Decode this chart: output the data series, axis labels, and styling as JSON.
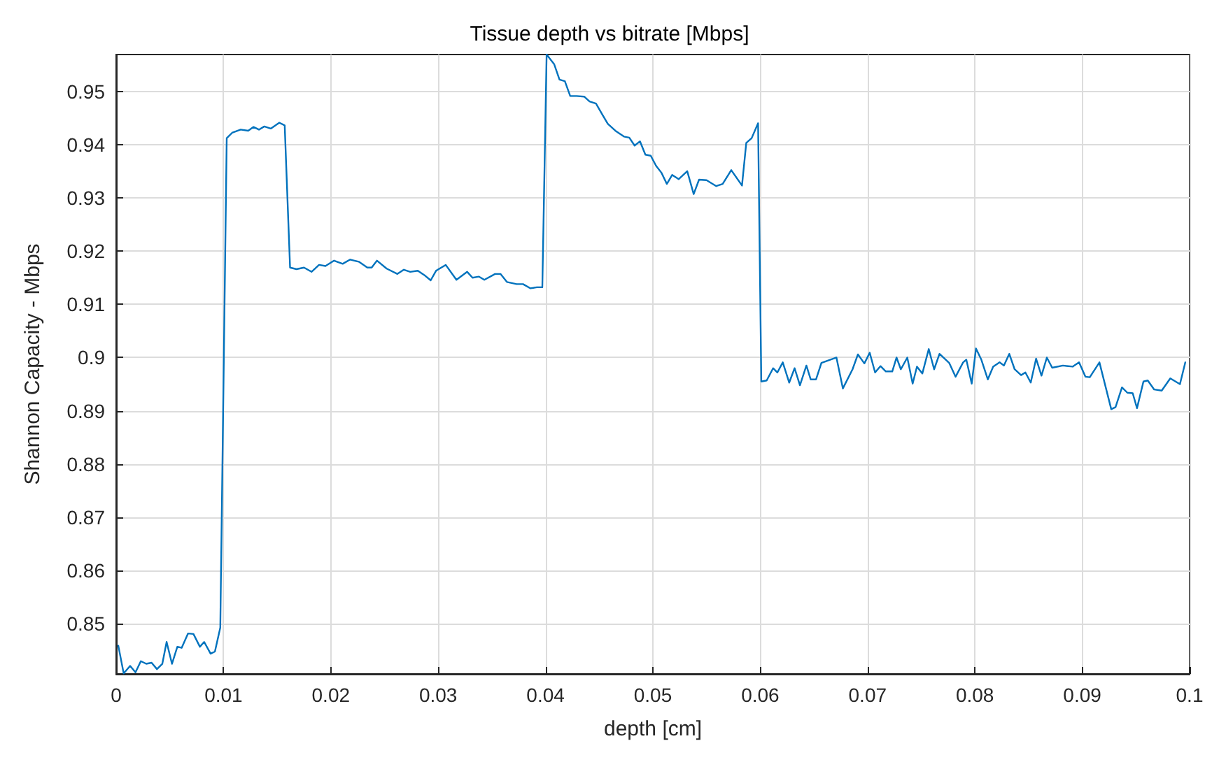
{
  "chart_data": {
    "type": "line",
    "title": "Tissue depth vs bitrate [Mbps]",
    "xlabel": "depth [cm]",
    "ylabel": "Shannon Capacity - Mbps",
    "xlim": [
      0,
      0.1
    ],
    "ylim": [
      0.8406,
      0.9569
    ],
    "xticks": [
      0,
      0.01,
      0.02,
      0.03,
      0.04,
      0.05,
      0.06,
      0.07,
      0.08,
      0.09,
      0.1
    ],
    "yticks": [
      0.85,
      0.86,
      0.87,
      0.88,
      0.89,
      0.9,
      0.91,
      0.92,
      0.93,
      0.94,
      0.95
    ],
    "grid": true,
    "marker": "none",
    "line_style": "solid",
    "x": [
      0.0002,
      0.0007,
      0.0013,
      0.0018,
      0.0023,
      0.0028,
      0.0033,
      0.0038,
      0.0043,
      0.0047,
      0.0052,
      0.0057,
      0.0061,
      0.0067,
      0.0072,
      0.0078,
      0.0082,
      0.0088,
      0.0092,
      0.0097,
      0.0103,
      0.0108,
      0.0116,
      0.0123,
      0.0128,
      0.0133,
      0.0138,
      0.0144,
      0.0152,
      0.0157,
      0.0162,
      0.0168,
      0.0175,
      0.0182,
      0.0189,
      0.0195,
      0.0203,
      0.0211,
      0.0218,
      0.0226,
      0.0234,
      0.0238,
      0.0243,
      0.0252,
      0.0262,
      0.0268,
      0.0274,
      0.0281,
      0.0287,
      0.0293,
      0.0298,
      0.0307,
      0.0317,
      0.0327,
      0.0332,
      0.0338,
      0.0343,
      0.0353,
      0.0358,
      0.0364,
      0.0373,
      0.0379,
      0.0386,
      0.0392,
      0.0397,
      0.0401,
      0.0408,
      0.0413,
      0.0418,
      0.0423,
      0.0429,
      0.0436,
      0.0441,
      0.0447,
      0.0453,
      0.0458,
      0.0465,
      0.0473,
      0.0478,
      0.0483,
      0.0488,
      0.0493,
      0.0498,
      0.0503,
      0.0508,
      0.0513,
      0.0518,
      0.0524,
      0.0532,
      0.0538,
      0.0543,
      0.055,
      0.0559,
      0.0565,
      0.0573,
      0.0583,
      0.0587,
      0.0592,
      0.0598,
      0.0601,
      0.0606,
      0.0612,
      0.0616,
      0.0621,
      0.0627,
      0.0632,
      0.0637,
      0.0643,
      0.0647,
      0.0652,
      0.0657,
      0.0671,
      0.0677,
      0.0686,
      0.0691,
      0.0697,
      0.0702,
      0.0707,
      0.0712,
      0.0717,
      0.0723,
      0.0727,
      0.0731,
      0.0737,
      0.0742,
      0.0746,
      0.0751,
      0.0757,
      0.0762,
      0.0767,
      0.0776,
      0.0782,
      0.0789,
      0.0792,
      0.0797,
      0.0801,
      0.0806,
      0.0812,
      0.0817,
      0.0823,
      0.0827,
      0.0832,
      0.0837,
      0.0843,
      0.0847,
      0.0852,
      0.0857,
      0.0862,
      0.0867,
      0.0872,
      0.0882,
      0.0891,
      0.0897,
      0.0903,
      0.0907,
      0.0916,
      0.0927,
      0.0931,
      0.0937,
      0.0942,
      0.0947,
      0.0951,
      0.0957,
      0.0961,
      0.0967,
      0.0974,
      0.0982,
      0.0991,
      0.0996
    ],
    "series": [
      {
        "color": "#0072bd",
        "values": [
          0.8459,
          0.8407,
          0.8421,
          0.8409,
          0.843,
          0.8425,
          0.8427,
          0.8415,
          0.8425,
          0.8466,
          0.8425,
          0.8457,
          0.8455,
          0.8482,
          0.8481,
          0.8457,
          0.8466,
          0.8444,
          0.8448,
          0.8493,
          0.9412,
          0.9422,
          0.9428,
          0.9426,
          0.9433,
          0.9428,
          0.9434,
          0.943,
          0.9441,
          0.9436,
          0.9169,
          0.9166,
          0.9169,
          0.9161,
          0.9174,
          0.9172,
          0.9182,
          0.9176,
          0.9184,
          0.918,
          0.9169,
          0.9169,
          0.9182,
          0.9167,
          0.9157,
          0.9165,
          0.9161,
          0.9163,
          0.9155,
          0.9145,
          0.9163,
          0.9174,
          0.9146,
          0.9161,
          0.915,
          0.9152,
          0.9146,
          0.9157,
          0.9157,
          0.9142,
          0.9138,
          0.9138,
          0.913,
          0.9132,
          0.9132,
          0.9569,
          0.9551,
          0.9522,
          0.9519,
          0.9491,
          0.9491,
          0.949,
          0.9481,
          0.9477,
          0.9456,
          0.9439,
          0.9426,
          0.9415,
          0.9413,
          0.9398,
          0.9406,
          0.9381,
          0.9379,
          0.936,
          0.9347,
          0.9326,
          0.9343,
          0.9335,
          0.935,
          0.9307,
          0.9334,
          0.9333,
          0.9322,
          0.9326,
          0.9352,
          0.9323,
          0.9403,
          0.9412,
          0.944,
          0.8955,
          0.8957,
          0.898,
          0.8972,
          0.8991,
          0.8953,
          0.898,
          0.8948,
          0.8985,
          0.8959,
          0.8959,
          0.899,
          0.9,
          0.8942,
          0.8978,
          0.9006,
          0.8989,
          0.9009,
          0.8972,
          0.8984,
          0.8974,
          0.8974,
          0.9,
          0.8978,
          0.9,
          0.8951,
          0.8983,
          0.897,
          0.9016,
          0.8978,
          0.9007,
          0.899,
          0.8964,
          0.8991,
          0.8996,
          0.8951,
          0.9017,
          0.8996,
          0.8959,
          0.8983,
          0.8991,
          0.8985,
          0.9007,
          0.8978,
          0.8967,
          0.8972,
          0.8953,
          0.8998,
          0.8966,
          0.9,
          0.8981,
          0.8985,
          0.8983,
          0.8991,
          0.8964,
          0.8963,
          0.8991,
          0.8903,
          0.8907,
          0.8944,
          0.8934,
          0.8933,
          0.8905,
          0.8955,
          0.8957,
          0.894,
          0.8938,
          0.8961,
          0.895,
          0.8991
        ]
      }
    ]
  }
}
